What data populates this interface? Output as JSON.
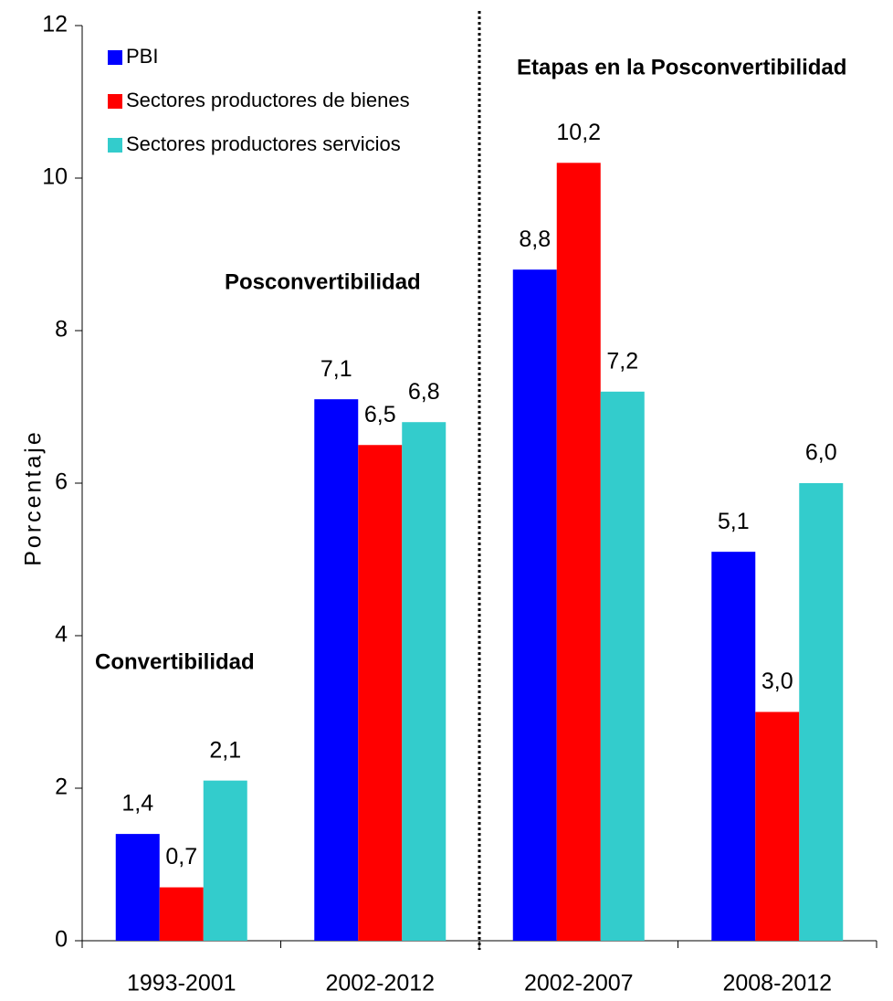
{
  "chart_data": {
    "type": "bar",
    "y_label": "Porcentaje",
    "categories": [
      "1993-2001",
      "2002-2012",
      "2002-2007",
      "2008-2012"
    ],
    "series": [
      {
        "name": "PBI",
        "color": "#0000ff",
        "values": [
          1.4,
          7.1,
          8.8,
          5.1
        ],
        "value_labels": [
          "1,4",
          "7,1",
          "8,8",
          "5,1"
        ]
      },
      {
        "name": "Sectores productores de bienes",
        "color": "#ff0000",
        "values": [
          0.7,
          6.5,
          10.2,
          3.0
        ],
        "value_labels": [
          "0,7",
          "6,5",
          "10,2",
          "3,0"
        ]
      },
      {
        "name": "Sectores productores servicios",
        "color": "#33cccc",
        "values": [
          2.1,
          6.8,
          7.2,
          6.0
        ],
        "value_labels": [
          "2,1",
          "6,8",
          "7,2",
          "6,0"
        ]
      }
    ],
    "annotations": [
      "Convertibilidad",
      "Posconvertibilidad",
      "Etapas en la Posconvertibilidad"
    ],
    "ylim": [
      0,
      12
    ],
    "yticks": [
      0,
      2,
      4,
      6,
      8,
      10,
      12
    ],
    "grid": false,
    "legend": "top-left"
  }
}
